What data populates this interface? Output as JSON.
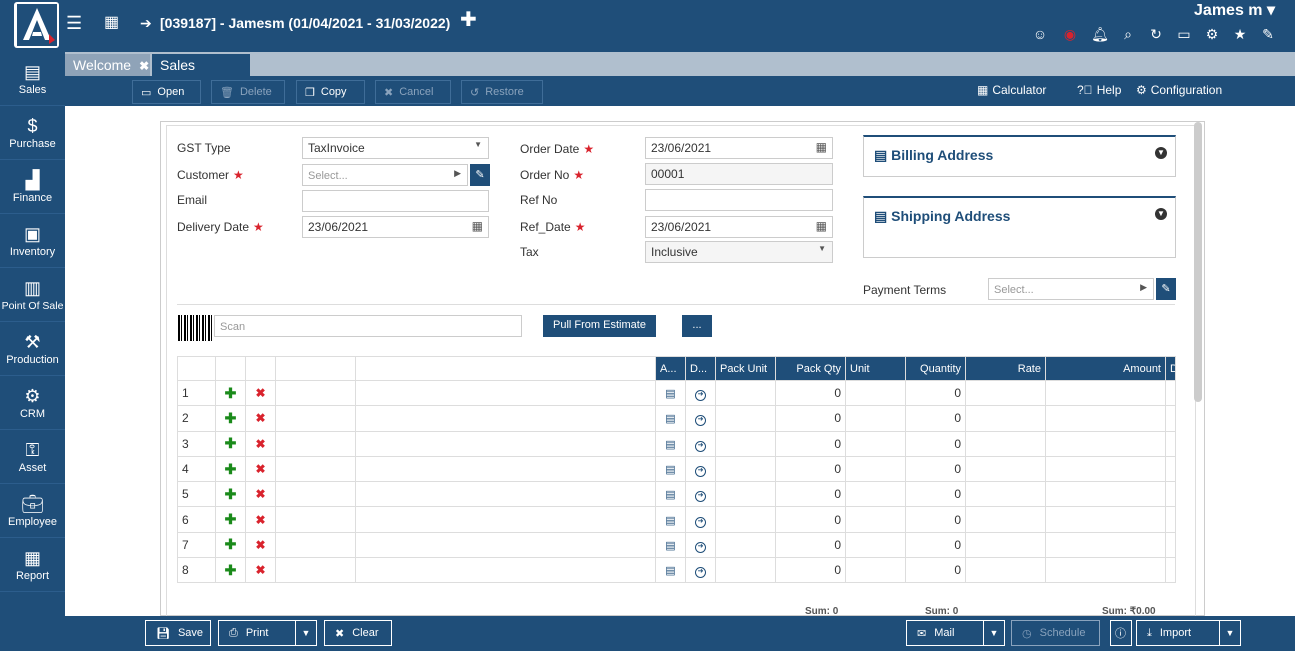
{
  "header": {
    "title": "[039187] - Jamesm (01/04/2021 - 31/03/2022)",
    "user": "James m ▾"
  },
  "sidebar": {
    "items": [
      {
        "label": "Sales",
        "icon": "sales-icon"
      },
      {
        "label": "Purchase",
        "icon": "purchase-icon"
      },
      {
        "label": "Finance",
        "icon": "finance-icon"
      },
      {
        "label": "Inventory",
        "icon": "inventory-icon"
      },
      {
        "label": "Point Of Sale",
        "icon": "pos-icon"
      },
      {
        "label": "Production",
        "icon": "production-icon"
      },
      {
        "label": "CRM",
        "icon": "crm-icon"
      },
      {
        "label": "Asset",
        "icon": "asset-icon"
      },
      {
        "label": "Employee",
        "icon": "employee-icon"
      },
      {
        "label": "Report",
        "icon": "report-icon"
      }
    ]
  },
  "tabs": [
    {
      "label": "Welcome"
    },
    {
      "label": "Sales Order"
    }
  ],
  "toolbar": {
    "open": "Open",
    "delete": "Delete",
    "copy": "Copy",
    "cancel": "Cancel",
    "restore": "Restore",
    "calculator": "Calculator",
    "help": "Help",
    "configuration": "Configuration"
  },
  "form": {
    "gst_type_label": "GST Type",
    "gst_type_value": "TaxInvoice",
    "customer_label": "Customer",
    "customer_placeholder": "Select...",
    "email_label": "Email",
    "delivery_date_label": "Delivery Date",
    "delivery_date_value": "23/06/2021",
    "order_date_label": "Order Date",
    "order_date_value": "23/06/2021",
    "order_no_label": "Order No",
    "order_no_value": "00001",
    "ref_no_label": "Ref No",
    "ref_date_label": "Ref_Date",
    "ref_date_value": "23/06/2021",
    "tax_label": "Tax",
    "tax_value": "Inclusive",
    "billing_address": "Billing Address",
    "shipping_address": "Shipping Address",
    "payment_terms_label": "Payment Terms",
    "payment_terms_placeholder": "Select...",
    "scan_placeholder": "Scan",
    "pull_from_estimate": "Pull From Estimate",
    "more": "..."
  },
  "grid": {
    "columns": [
      "A...",
      "D...",
      "Pack Unit",
      "Pack Qty",
      "Unit",
      "Quantity",
      "Rate",
      "Amount",
      "D"
    ],
    "rows": [
      {
        "no": "1",
        "pack_qty": "0",
        "quantity": "0"
      },
      {
        "no": "2",
        "pack_qty": "0",
        "quantity": "0"
      },
      {
        "no": "3",
        "pack_qty": "0",
        "quantity": "0"
      },
      {
        "no": "4",
        "pack_qty": "0",
        "quantity": "0"
      },
      {
        "no": "5",
        "pack_qty": "0",
        "quantity": "0"
      },
      {
        "no": "6",
        "pack_qty": "0",
        "quantity": "0"
      },
      {
        "no": "7",
        "pack_qty": "0",
        "quantity": "0"
      },
      {
        "no": "8",
        "pack_qty": "0",
        "quantity": "0"
      }
    ],
    "sum_pack_qty": "Sum: 0",
    "sum_quantity": "Sum: 0",
    "sum_amount": "Sum: ₹0.00"
  },
  "bottom": {
    "save": "Save",
    "print": "Print",
    "clear": "Clear",
    "mail": "Mail",
    "schedule": "Schedule",
    "import": "Import"
  },
  "colors": {
    "primary": "#1f4e79",
    "required": "#d9232d",
    "add": "#1a8a1a"
  }
}
